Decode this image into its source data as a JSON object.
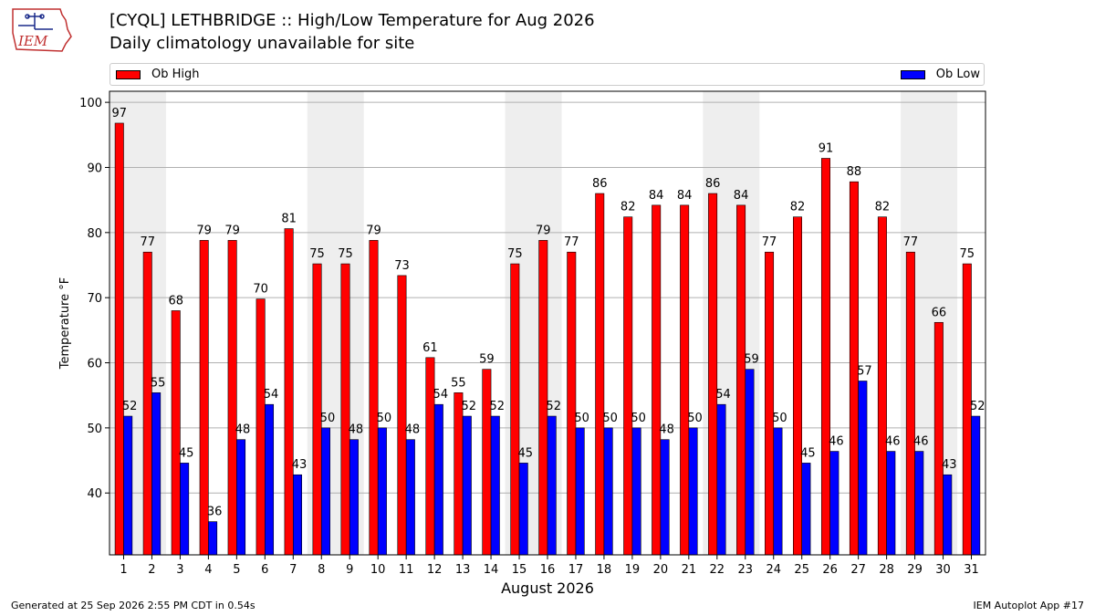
{
  "header": {
    "logo_text": "IEM",
    "title": "[CYQL] LETHBRIDGE :: High/Low Temperature for Aug 2026",
    "subtitle": "Daily climatology unavailable for site"
  },
  "footer": {
    "generated": "Generated at 25 Sep 2026 2:55 PM CDT in 0.54s",
    "app": "IEM Autoplot App #17"
  },
  "colors": {
    "high": "#ff0000",
    "low": "#0000ff",
    "weekend_band": "#eeeeee",
    "grid": "#b0b0b0"
  },
  "chart_data": {
    "type": "bar",
    "xlabel": "August 2026",
    "ylabel": "Temperature °F",
    "ylim": [
      30.5,
      101.7
    ],
    "yticks": [
      40,
      50,
      60,
      70,
      80,
      90,
      100
    ],
    "grid": true,
    "legend": "top",
    "categories": [
      "1",
      "2",
      "3",
      "4",
      "5",
      "6",
      "7",
      "8",
      "9",
      "10",
      "11",
      "12",
      "13",
      "14",
      "15",
      "16",
      "17",
      "18",
      "19",
      "20",
      "21",
      "22",
      "23",
      "24",
      "25",
      "26",
      "27",
      "28",
      "29",
      "30",
      "31"
    ],
    "weekend_bands": [
      [
        1,
        2
      ],
      [
        8,
        9
      ],
      [
        15,
        16
      ],
      [
        22,
        23
      ],
      [
        29,
        30
      ]
    ],
    "series": [
      {
        "name": "Ob High",
        "label_values": [
          97,
          77,
          68,
          79,
          79,
          70,
          81,
          75,
          75,
          79,
          73,
          61,
          55,
          59,
          75,
          79,
          77,
          86,
          82,
          84,
          84,
          86,
          84,
          77,
          82,
          91,
          88,
          82,
          77,
          66,
          75
        ],
        "values": [
          96.8,
          77.0,
          68.0,
          78.8,
          78.8,
          69.8,
          80.6,
          75.2,
          75.2,
          78.8,
          73.4,
          60.8,
          55.4,
          59.0,
          75.2,
          78.8,
          77.0,
          86.0,
          82.4,
          84.2,
          84.2,
          86.0,
          84.2,
          77.0,
          82.4,
          91.4,
          87.8,
          82.4,
          77.0,
          66.2,
          75.2
        ]
      },
      {
        "name": "Ob Low",
        "label_values": [
          52,
          55,
          45,
          36,
          48,
          54,
          43,
          50,
          48,
          50,
          48,
          54,
          52,
          52,
          45,
          52,
          50,
          50,
          50,
          48,
          50,
          54,
          59,
          50,
          45,
          46,
          57,
          46,
          46,
          43,
          52
        ],
        "values": [
          51.8,
          55.4,
          44.6,
          35.6,
          48.2,
          53.6,
          42.8,
          50.0,
          48.2,
          50.0,
          48.2,
          53.6,
          51.8,
          51.8,
          44.6,
          51.8,
          50.0,
          50.0,
          50.0,
          48.2,
          50.0,
          53.6,
          59.0,
          50.0,
          44.6,
          46.4,
          57.2,
          46.4,
          46.4,
          42.8,
          51.8
        ]
      }
    ]
  }
}
